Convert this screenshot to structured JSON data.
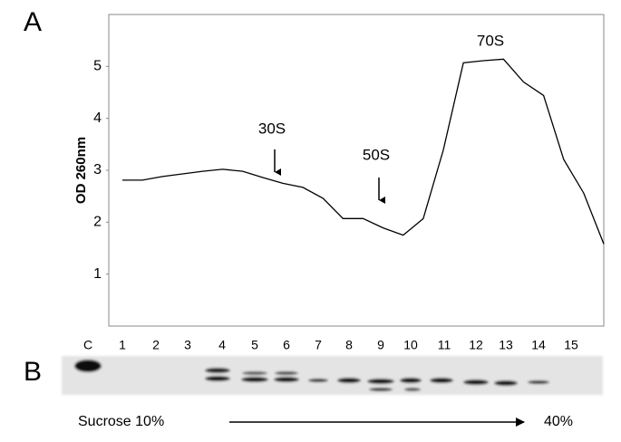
{
  "chart_data": {
    "type": "line",
    "panel_labels": [
      "A",
      "B"
    ],
    "ylabel": "OD 260nm",
    "values": [
      2.81,
      2.81,
      2.88,
      2.93,
      2.98,
      3.02,
      2.98,
      2.86,
      2.75,
      2.67,
      2.46,
      2.07,
      2.07,
      1.89,
      1.75,
      2.07,
      3.39,
      5.07,
      5.11,
      5.14,
      4.7,
      4.44,
      3.21,
      2.56,
      1.58
    ],
    "color": "#000000",
    "ylim": [
      0,
      6
    ],
    "yticks": [
      1,
      2,
      3,
      4,
      5
    ],
    "annotations": [
      "30S",
      "50S",
      "70S"
    ],
    "lane_labels": [
      "C",
      "1",
      "2",
      "3",
      "4",
      "5",
      "6",
      "7",
      "8",
      "9",
      "10",
      "11",
      "12",
      "13",
      "14",
      "15"
    ],
    "gradient_start": "Sucrose 10%",
    "gradient_end": "40%"
  }
}
